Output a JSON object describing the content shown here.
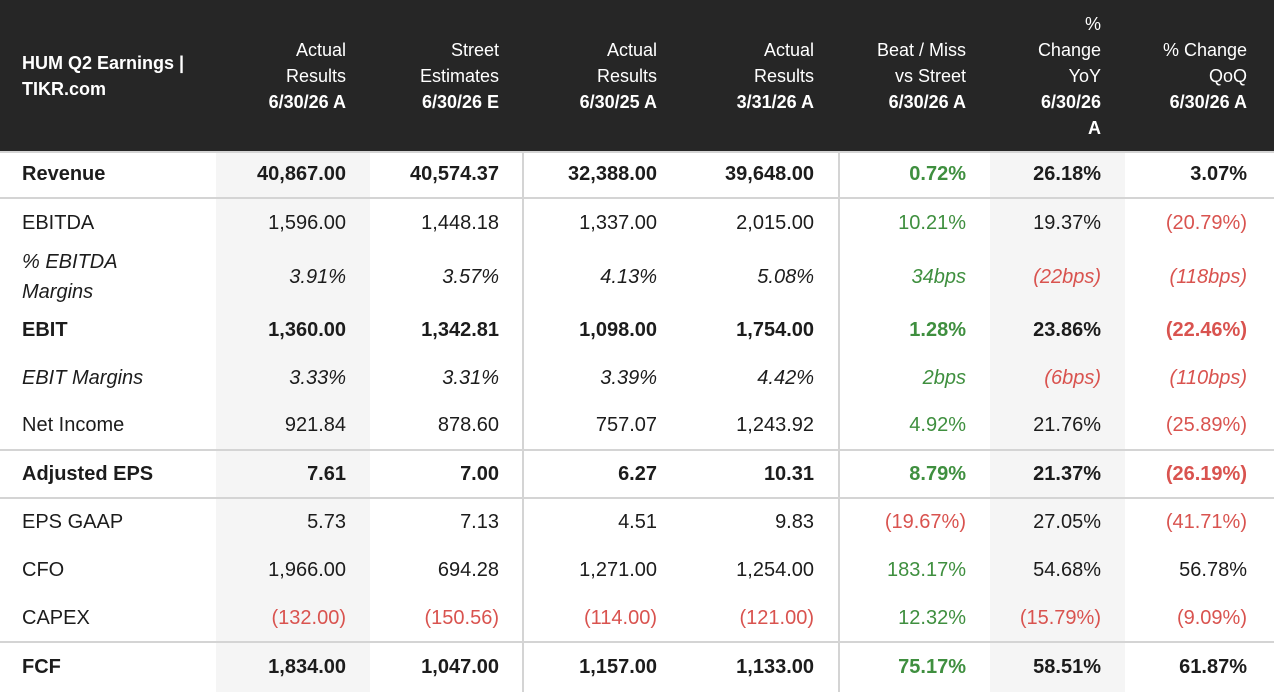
{
  "table": {
    "title_lines": [
      "HUM Q2 Earnings |",
      "TIKR.com"
    ],
    "columns": [
      {
        "lines": [
          "Actual",
          "Results"
        ],
        "date": "6/30/26 A"
      },
      {
        "lines": [
          "Street",
          "Estimates"
        ],
        "date": "6/30/26 E"
      },
      {
        "lines": [
          "Actual",
          "Results"
        ],
        "date": "6/30/25 A"
      },
      {
        "lines": [
          "Actual",
          "Results"
        ],
        "date": "3/31/26 A"
      },
      {
        "lines": [
          "Beat / Miss",
          "vs Street"
        ],
        "date": "6/30/26 A"
      },
      {
        "lines": [
          "%",
          "Change",
          "YoY"
        ],
        "date": "6/30/26",
        "date2": "A"
      },
      {
        "lines": [
          "% Change",
          "QoQ"
        ],
        "date": "6/30/26 A"
      }
    ],
    "rows": [
      {
        "label": "Revenue",
        "style": "bold",
        "values": [
          "40,867.00",
          "40,574.37",
          "32,388.00",
          "39,648.00",
          "0.72%",
          "26.18%",
          "3.07%"
        ],
        "colors": [
          "",
          "",
          "",
          "",
          "pos",
          "",
          ""
        ]
      },
      {
        "label": "EBITDA",
        "style": "normal",
        "values": [
          "1,596.00",
          "1,448.18",
          "1,337.00",
          "2,015.00",
          "10.21%",
          "19.37%",
          "(20.79%)"
        ],
        "colors": [
          "",
          "",
          "",
          "",
          "pos",
          "",
          "neg"
        ]
      },
      {
        "label": "% EBITDA Margins",
        "style": "italic",
        "values": [
          "3.91%",
          "3.57%",
          "4.13%",
          "5.08%",
          "34bps",
          "(22bps)",
          "(118bps)"
        ],
        "colors": [
          "",
          "",
          "",
          "",
          "pos",
          "neg",
          "neg"
        ]
      },
      {
        "label": "EBIT",
        "style": "bold",
        "values": [
          "1,360.00",
          "1,342.81",
          "1,098.00",
          "1,754.00",
          "1.28%",
          "23.86%",
          "(22.46%)"
        ],
        "colors": [
          "",
          "",
          "",
          "",
          "pos",
          "",
          "neg"
        ]
      },
      {
        "label": "EBIT Margins",
        "style": "italic",
        "values": [
          "3.33%",
          "3.31%",
          "3.39%",
          "4.42%",
          "2bps",
          "(6bps)",
          "(110bps)"
        ],
        "colors": [
          "",
          "",
          "",
          "",
          "pos",
          "neg",
          "neg"
        ]
      },
      {
        "label": "Net Income",
        "style": "normal",
        "values": [
          "921.84",
          "878.60",
          "757.07",
          "1,243.92",
          "4.92%",
          "21.76%",
          "(25.89%)"
        ],
        "colors": [
          "",
          "",
          "",
          "",
          "pos",
          "",
          "neg"
        ]
      },
      {
        "label": "Adjusted EPS",
        "style": "bold",
        "values": [
          "7.61",
          "7.00",
          "6.27",
          "10.31",
          "8.79%",
          "21.37%",
          "(26.19%)"
        ],
        "colors": [
          "",
          "",
          "",
          "",
          "pos",
          "",
          "neg"
        ]
      },
      {
        "label": "EPS GAAP",
        "style": "normal",
        "values": [
          "5.73",
          "7.13",
          "4.51",
          "9.83",
          "(19.67%)",
          "27.05%",
          "(41.71%)"
        ],
        "colors": [
          "",
          "",
          "",
          "",
          "neg",
          "",
          "neg"
        ]
      },
      {
        "label": "CFO",
        "style": "normal",
        "values": [
          "1,966.00",
          "694.28",
          "1,271.00",
          "1,254.00",
          "183.17%",
          "54.68%",
          "56.78%"
        ],
        "colors": [
          "",
          "",
          "",
          "",
          "pos",
          "",
          ""
        ]
      },
      {
        "label": "CAPEX",
        "style": "normal",
        "values": [
          "(132.00)",
          "(150.56)",
          "(114.00)",
          "(121.00)",
          "12.32%",
          "(15.79%)",
          "(9.09%)"
        ],
        "colors": [
          "neg",
          "neg",
          "neg",
          "neg",
          "pos",
          "neg",
          "neg"
        ]
      },
      {
        "label": "FCF",
        "style": "bold",
        "values": [
          "1,834.00",
          "1,047.00",
          "1,157.00",
          "1,133.00",
          "75.17%",
          "58.51%",
          "61.87%"
        ],
        "colors": [
          "",
          "",
          "",
          "",
          "pos",
          "",
          ""
        ]
      }
    ]
  },
  "colors": {
    "header_bg": "#262626",
    "positive": "#3f8f3f",
    "negative": "#d9534f",
    "shade": "#f5f5f5"
  }
}
